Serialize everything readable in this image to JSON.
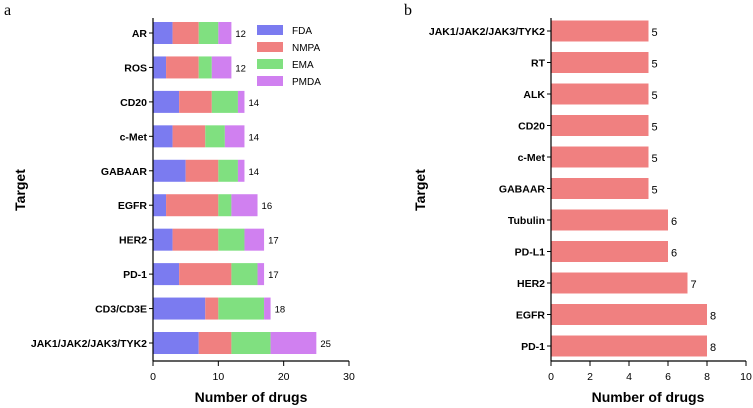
{
  "chart_data": [
    {
      "type": "bar",
      "orientation": "horizontal",
      "stacked": true,
      "panel_label": "a",
      "xlabel": "Number of drugs",
      "ylabel": "Target",
      "xlim": [
        0,
        30
      ],
      "xticks": [
        "0",
        "10",
        "20",
        "30"
      ],
      "legend_position": "top-right",
      "categories": [
        "AR",
        "ROS",
        "CD20",
        "c-Met",
        "GABAAR",
        "EGFR",
        "HER2",
        "PD-1",
        "CD3/CD3E",
        "JAK1/JAK2/JAK3/TYK2"
      ],
      "series": [
        {
          "name": "FDA",
          "color": "#7b7bf0",
          "values": [
            3,
            2,
            4,
            3,
            5,
            2,
            3,
            4,
            8,
            7
          ]
        },
        {
          "name": "NMPA",
          "color": "#f08080",
          "values": [
            4,
            5,
            5,
            5,
            5,
            8,
            7,
            8,
            2,
            5
          ]
        },
        {
          "name": "EMA",
          "color": "#80e080",
          "values": [
            3,
            2,
            4,
            3,
            3,
            2,
            4,
            4,
            7,
            6
          ]
        },
        {
          "name": "PMDA",
          "color": "#d080f0",
          "values": [
            2,
            3,
            1,
            3,
            1,
            4,
            3,
            1,
            1,
            7
          ]
        }
      ],
      "totals": [
        "12",
        "12",
        "14",
        "14",
        "14",
        "16",
        "17",
        "17",
        "18",
        "25"
      ]
    },
    {
      "type": "bar",
      "orientation": "horizontal",
      "panel_label": "b",
      "xlabel": "Number of drugs",
      "ylabel": "Target",
      "xlim": [
        0,
        10
      ],
      "xticks": [
        "0",
        "2",
        "4",
        "6",
        "8",
        "10"
      ],
      "color": "#f08080",
      "categories": [
        "JAK1/JAK2/JAK3/TYK2",
        "RT",
        "ALK",
        "CD20",
        "c-Met",
        "GABAAR",
        "Tubulin",
        "PD-L1",
        "HER2",
        "EGFR",
        "PD-1"
      ],
      "values": [
        5,
        5,
        5,
        5,
        5,
        5,
        6,
        6,
        7,
        8,
        8
      ],
      "value_labels": [
        "5",
        "5",
        "5",
        "5",
        "5",
        "5",
        "6",
        "6",
        "7",
        "8",
        "8"
      ]
    }
  ]
}
